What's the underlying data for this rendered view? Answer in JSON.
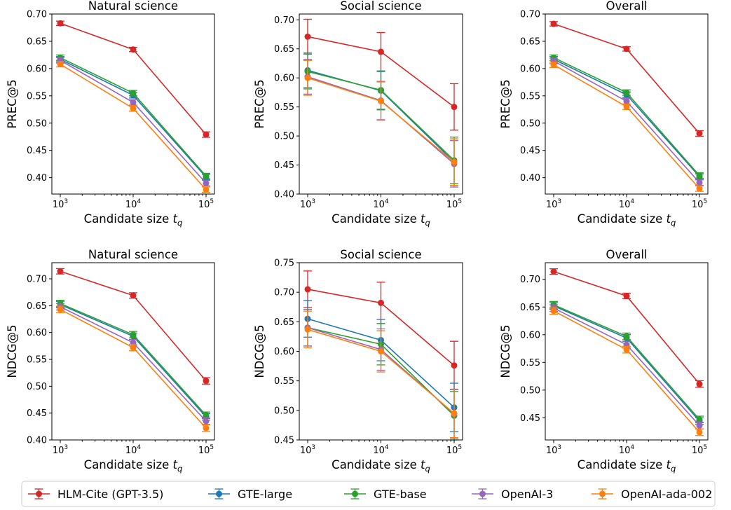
{
  "chart_data": [
    {
      "type": "line",
      "title": "Natural science",
      "xlabel": "Candidate size",
      "xlabel_sub": "q",
      "ylabel": "PREC@5",
      "x": [
        1000,
        10000,
        100000
      ],
      "x_scale": "log",
      "ylim": [
        0.37,
        0.7
      ],
      "yticks": [
        "0.40",
        "0.45",
        "0.50",
        "0.55",
        "0.60",
        "0.65",
        "0.70"
      ],
      "series": [
        {
          "name": "HLM-Cite (GPT-3.5)",
          "values": [
            0.683,
            0.635,
            0.479
          ],
          "err": [
            0.004,
            0.004,
            0.005
          ]
        },
        {
          "name": "GTE-large",
          "values": [
            0.617,
            0.551,
            0.401
          ],
          "err": [
            0.005,
            0.005,
            0.005
          ]
        },
        {
          "name": "GTE-base",
          "values": [
            0.62,
            0.555,
            0.403
          ],
          "err": [
            0.005,
            0.005,
            0.005
          ]
        },
        {
          "name": "OpenAI-3",
          "values": [
            0.615,
            0.538,
            0.39
          ],
          "err": [
            0.005,
            0.005,
            0.005
          ]
        },
        {
          "name": "OpenAI-ada-002",
          "values": [
            0.608,
            0.527,
            0.378
          ],
          "err": [
            0.005,
            0.005,
            0.005
          ]
        }
      ]
    },
    {
      "type": "line",
      "title": "Social science",
      "xlabel": "Candidate size",
      "xlabel_sub": "q",
      "ylabel": "PREC@5",
      "x": [
        1000,
        10000,
        100000
      ],
      "x_scale": "log",
      "ylim": [
        0.4,
        0.71
      ],
      "yticks": [
        "0.40",
        "0.45",
        "0.50",
        "0.55",
        "0.60",
        "0.65",
        "0.70"
      ],
      "series": [
        {
          "name": "HLM-Cite (GPT-3.5)",
          "values": [
            0.671,
            0.645,
            0.55
          ],
          "err": [
            0.03,
            0.033,
            0.04
          ]
        },
        {
          "name": "GTE-large",
          "values": [
            0.613,
            0.578,
            0.455
          ],
          "err": [
            0.03,
            0.033,
            0.04
          ]
        },
        {
          "name": "GTE-base",
          "values": [
            0.611,
            0.579,
            0.458
          ],
          "err": [
            0.03,
            0.033,
            0.04
          ]
        },
        {
          "name": "OpenAI-3",
          "values": [
            0.602,
            0.561,
            0.452
          ],
          "err": [
            0.03,
            0.033,
            0.04
          ]
        },
        {
          "name": "OpenAI-ada-002",
          "values": [
            0.6,
            0.56,
            0.455
          ],
          "err": [
            0.03,
            0.033,
            0.04
          ]
        }
      ]
    },
    {
      "type": "line",
      "title": "Overall",
      "xlabel": "Candidate size",
      "xlabel_sub": "q",
      "ylabel": "PREC@5",
      "x": [
        1000,
        10000,
        100000
      ],
      "x_scale": "log",
      "ylim": [
        0.37,
        0.7
      ],
      "yticks": [
        "0.40",
        "0.45",
        "0.50",
        "0.55",
        "0.60",
        "0.65",
        "0.70"
      ],
      "series": [
        {
          "name": "HLM-Cite (GPT-3.5)",
          "values": [
            0.682,
            0.636,
            0.481
          ],
          "err": [
            0.004,
            0.004,
            0.005
          ]
        },
        {
          "name": "GTE-large",
          "values": [
            0.617,
            0.552,
            0.402
          ],
          "err": [
            0.005,
            0.005,
            0.005
          ]
        },
        {
          "name": "GTE-base",
          "values": [
            0.62,
            0.556,
            0.404
          ],
          "err": [
            0.005,
            0.005,
            0.005
          ]
        },
        {
          "name": "OpenAI-3",
          "values": [
            0.614,
            0.54,
            0.391
          ],
          "err": [
            0.005,
            0.005,
            0.005
          ]
        },
        {
          "name": "OpenAI-ada-002",
          "values": [
            0.607,
            0.53,
            0.38
          ],
          "err": [
            0.005,
            0.005,
            0.005
          ]
        }
      ]
    },
    {
      "type": "line",
      "title": "Natural science",
      "xlabel": "Candidate size",
      "xlabel_sub": "q",
      "ylabel": "NDCG@5",
      "x": [
        1000,
        10000,
        100000
      ],
      "x_scale": "log",
      "ylim": [
        0.4,
        0.73
      ],
      "yticks": [
        "0.40",
        "0.45",
        "0.50",
        "0.55",
        "0.60",
        "0.65",
        "0.70"
      ],
      "series": [
        {
          "name": "HLM-Cite (GPT-3.5)",
          "values": [
            0.714,
            0.669,
            0.51
          ],
          "err": [
            0.005,
            0.005,
            0.006
          ]
        },
        {
          "name": "GTE-large",
          "values": [
            0.652,
            0.593,
            0.443
          ],
          "err": [
            0.006,
            0.006,
            0.006
          ]
        },
        {
          "name": "GTE-base",
          "values": [
            0.654,
            0.596,
            0.446
          ],
          "err": [
            0.006,
            0.006,
            0.006
          ]
        },
        {
          "name": "OpenAI-3",
          "values": [
            0.648,
            0.581,
            0.435
          ],
          "err": [
            0.006,
            0.006,
            0.006
          ]
        },
        {
          "name": "OpenAI-ada-002",
          "values": [
            0.643,
            0.572,
            0.422
          ],
          "err": [
            0.006,
            0.006,
            0.006
          ]
        }
      ]
    },
    {
      "type": "line",
      "title": "Social science",
      "xlabel": "Candidate size",
      "xlabel_sub": "q",
      "ylabel": "NDCG@5",
      "x": [
        1000,
        10000,
        100000
      ],
      "x_scale": "log",
      "ylim": [
        0.45,
        0.75
      ],
      "yticks": [
        "0.45",
        "0.50",
        "0.55",
        "0.60",
        "0.65",
        "0.70",
        "0.75"
      ],
      "series": [
        {
          "name": "HLM-Cite (GPT-3.5)",
          "values": [
            0.705,
            0.682,
            0.576
          ],
          "err": [
            0.031,
            0.035,
            0.041
          ]
        },
        {
          "name": "GTE-large",
          "values": [
            0.655,
            0.619,
            0.505
          ],
          "err": [
            0.031,
            0.035,
            0.041
          ]
        },
        {
          "name": "GTE-base",
          "values": [
            0.64,
            0.612,
            0.491
          ],
          "err": [
            0.031,
            0.035,
            0.041
          ]
        },
        {
          "name": "OpenAI-3",
          "values": [
            0.64,
            0.603,
            0.494
          ],
          "err": [
            0.031,
            0.035,
            0.041
          ]
        },
        {
          "name": "OpenAI-ada-002",
          "values": [
            0.637,
            0.6,
            0.495
          ],
          "err": [
            0.031,
            0.035,
            0.041
          ]
        }
      ]
    },
    {
      "type": "line",
      "title": "Overall",
      "xlabel": "Candidate size",
      "xlabel_sub": "q",
      "ylabel": "NDCG@5",
      "x": [
        1000,
        10000,
        100000
      ],
      "x_scale": "log",
      "ylim": [
        0.41,
        0.73
      ],
      "yticks": [
        "0.45",
        "0.50",
        "0.55",
        "0.60",
        "0.65",
        "0.70"
      ],
      "series": [
        {
          "name": "HLM-Cite (GPT-3.5)",
          "values": [
            0.714,
            0.67,
            0.511
          ],
          "err": [
            0.005,
            0.005,
            0.006
          ]
        },
        {
          "name": "GTE-large",
          "values": [
            0.652,
            0.594,
            0.444
          ],
          "err": [
            0.006,
            0.006,
            0.006
          ]
        },
        {
          "name": "GTE-base",
          "values": [
            0.654,
            0.597,
            0.447
          ],
          "err": [
            0.006,
            0.006,
            0.006
          ]
        },
        {
          "name": "OpenAI-3",
          "values": [
            0.648,
            0.582,
            0.436
          ],
          "err": [
            0.006,
            0.006,
            0.006
          ]
        },
        {
          "name": "OpenAI-ada-002",
          "values": [
            0.643,
            0.573,
            0.424
          ],
          "err": [
            0.006,
            0.006,
            0.006
          ]
        }
      ]
    }
  ],
  "xticks": [
    {
      "base": "10",
      "exp": "3"
    },
    {
      "base": "10",
      "exp": "4"
    },
    {
      "base": "10",
      "exp": "5"
    }
  ],
  "colors": [
    "#d62728",
    "#1f77b4",
    "#2ca02c",
    "#9467bd",
    "#ff7f0e"
  ],
  "legend": {
    "placement": "bottom-center",
    "entries": [
      "HLM-Cite (GPT-3.5)",
      "GTE-large",
      "GTE-base",
      "OpenAI-3",
      "OpenAI-ada-002"
    ]
  }
}
